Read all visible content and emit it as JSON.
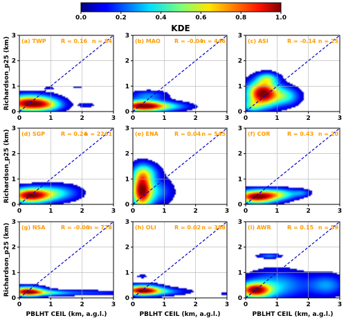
{
  "colorbar": {
    "label": "KDE",
    "ticks": [
      "0.0",
      "0.2",
      "0.4",
      "0.6",
      "0.8",
      "1.0"
    ],
    "range": [
      0,
      1
    ],
    "colormap": "jet"
  },
  "axes": {
    "xlabel": "PBLHT CEIL (km, a.g.l.)",
    "ylabel": "Richardson_p25 (km)",
    "xticks": [
      "0",
      "1",
      "2",
      "3"
    ],
    "yticks": [
      "0",
      "1",
      "2",
      "3"
    ]
  },
  "chart_data": [
    {
      "type": "heatmap",
      "panel": "(a)",
      "site": "TWP",
      "label": "(a) TWP",
      "R": "R = 0.16",
      "n": "n = 84",
      "xlim": [
        0,
        3
      ],
      "ylim": [
        0,
        3
      ],
      "grid": true,
      "diagonal": "1:1 dashed blue",
      "blobs": [
        {
          "cx": 0.32,
          "cy": 0.32,
          "sx": 0.55,
          "sy": 0.22,
          "amp": 1.0
        },
        {
          "cx": 0.9,
          "cy": 0.25,
          "sx": 0.35,
          "sy": 0.15,
          "amp": 0.25
        },
        {
          "cx": 0.95,
          "cy": 0.92,
          "sx": 0.12,
          "sy": 0.04,
          "amp": 0.12
        },
        {
          "cx": 1.85,
          "cy": 0.95,
          "sx": 0.12,
          "sy": 0.04,
          "amp": 0.12
        },
        {
          "cx": 2.15,
          "cy": 0.25,
          "sx": 0.18,
          "sy": 0.06,
          "amp": 0.15
        }
      ]
    },
    {
      "type": "heatmap",
      "panel": "(b)",
      "site": "MAO",
      "label": "(b) MAO",
      "R": "R = -0.04",
      "n": "n = 446",
      "xlim": [
        0,
        3
      ],
      "ylim": [
        0,
        3
      ],
      "grid": true,
      "diagonal": "1:1 dashed blue",
      "blobs": [
        {
          "cx": 0.3,
          "cy": 0.22,
          "sx": 0.5,
          "sy": 0.16,
          "amp": 1.0
        },
        {
          "cx": 1.1,
          "cy": 0.2,
          "sx": 0.55,
          "sy": 0.12,
          "amp": 0.3
        },
        {
          "cx": 0.5,
          "cy": 0.65,
          "sx": 0.4,
          "sy": 0.12,
          "amp": 0.25
        }
      ]
    },
    {
      "type": "heatmap",
      "panel": "(c)",
      "site": "ASI",
      "label": "(c) ASI",
      "R": "R = -0.14",
      "n": "n = 25",
      "xlim": [
        0,
        3
      ],
      "ylim": [
        0,
        3
      ],
      "grid": true,
      "diagonal": "1:1 dashed blue",
      "blobs": [
        {
          "cx": 0.55,
          "cy": 0.7,
          "sx": 0.35,
          "sy": 0.35,
          "amp": 1.0
        },
        {
          "cx": 0.7,
          "cy": 1.3,
          "sx": 0.22,
          "sy": 0.15,
          "amp": 0.35
        },
        {
          "cx": 1.3,
          "cy": 0.6,
          "sx": 0.3,
          "sy": 0.25,
          "amp": 0.35
        },
        {
          "cx": 0.2,
          "cy": 0.2,
          "sx": 0.2,
          "sy": 0.15,
          "amp": 0.3
        }
      ]
    },
    {
      "type": "heatmap",
      "panel": "(d)",
      "site": "SGP",
      "label": "(d) SGP",
      "R": "R = 0.24",
      "n": "n = 2261",
      "xlim": [
        0,
        3
      ],
      "ylim": [
        0,
        3
      ],
      "grid": true,
      "diagonal": "1:1 dashed blue",
      "blobs": [
        {
          "cx": 0.35,
          "cy": 0.35,
          "sx": 0.45,
          "sy": 0.2,
          "amp": 1.0
        },
        {
          "cx": 1.2,
          "cy": 0.45,
          "sx": 0.5,
          "sy": 0.22,
          "amp": 0.35
        }
      ]
    },
    {
      "type": "heatmap",
      "panel": "(e)",
      "site": "ENA",
      "label": "(e) ENA",
      "R": "R = 0.04",
      "n": "n = 545",
      "xlim": [
        0,
        3
      ],
      "ylim": [
        0,
        3
      ],
      "grid": true,
      "diagonal": "1:1 dashed blue",
      "blobs": [
        {
          "cx": 0.28,
          "cy": 0.55,
          "sx": 0.22,
          "sy": 0.5,
          "amp": 1.0
        },
        {
          "cx": 0.4,
          "cy": 1.25,
          "sx": 0.3,
          "sy": 0.25,
          "amp": 0.35
        },
        {
          "cx": 0.75,
          "cy": 0.5,
          "sx": 0.35,
          "sy": 0.35,
          "amp": 0.3
        }
      ]
    },
    {
      "type": "heatmap",
      "panel": "(f)",
      "site": "COR",
      "label": "(f) COR",
      "R": "R = 0.43",
      "n": "n = 20",
      "xlim": [
        0,
        3
      ],
      "ylim": [
        0,
        3
      ],
      "grid": true,
      "diagonal": "1:1 dashed blue",
      "blobs": [
        {
          "cx": 0.35,
          "cy": 0.3,
          "sx": 0.45,
          "sy": 0.18,
          "amp": 1.0
        },
        {
          "cx": 1.1,
          "cy": 0.4,
          "sx": 0.4,
          "sy": 0.15,
          "amp": 0.4
        },
        {
          "cx": 1.8,
          "cy": 0.45,
          "sx": 0.2,
          "sy": 0.1,
          "amp": 0.2
        }
      ]
    },
    {
      "type": "heatmap",
      "panel": "(g)",
      "site": "NSA",
      "label": "(g) NSA",
      "R": "R = -0.06",
      "n": "n = 778",
      "xlim": [
        0,
        3
      ],
      "ylim": [
        0,
        3
      ],
      "grid": true,
      "diagonal": "1:1 dashed blue",
      "blobs": [
        {
          "cx": 0.25,
          "cy": 0.25,
          "sx": 0.35,
          "sy": 0.13,
          "amp": 1.0
        },
        {
          "cx": 0.9,
          "cy": 0.2,
          "sx": 0.5,
          "sy": 0.08,
          "amp": 0.35
        },
        {
          "cx": 2.2,
          "cy": 0.2,
          "sx": 0.9,
          "sy": 0.07,
          "amp": 0.2
        }
      ]
    },
    {
      "type": "heatmap",
      "panel": "(h)",
      "site": "OLI",
      "label": "(h) OLI",
      "R": "R = 0.02",
      "n": "n = 388",
      "xlim": [
        0,
        3
      ],
      "ylim": [
        0,
        3
      ],
      "grid": true,
      "diagonal": "1:1 dashed blue",
      "blobs": [
        {
          "cx": 0.3,
          "cy": 0.3,
          "sx": 0.4,
          "sy": 0.14,
          "amp": 1.0
        },
        {
          "cx": 0.9,
          "cy": 0.25,
          "sx": 0.6,
          "sy": 0.1,
          "amp": 0.3
        },
        {
          "cx": 0.3,
          "cy": 0.85,
          "sx": 0.13,
          "sy": 0.05,
          "amp": 0.15
        },
        {
          "cx": 2.95,
          "cy": 0.15,
          "sx": 0.12,
          "sy": 0.05,
          "amp": 0.15
        }
      ]
    },
    {
      "type": "heatmap",
      "panel": "(i)",
      "site": "AWR",
      "label": "(i) AWR",
      "R": "R = 0.15",
      "n": "n = 59",
      "xlim": [
        0,
        3
      ],
      "ylim": [
        0,
        3
      ],
      "grid": true,
      "diagonal": "1:1 dashed blue",
      "blobs": [
        {
          "cx": 0.3,
          "cy": 0.3,
          "sx": 0.35,
          "sy": 0.2,
          "amp": 1.0
        },
        {
          "cx": 1.0,
          "cy": 0.5,
          "sx": 0.7,
          "sy": 0.4,
          "amp": 0.35
        },
        {
          "cx": 2.6,
          "cy": 0.5,
          "sx": 0.4,
          "sy": 0.3,
          "amp": 0.3
        },
        {
          "cx": 0.75,
          "cy": 1.65,
          "sx": 0.25,
          "sy": 0.06,
          "amp": 0.3
        }
      ]
    }
  ]
}
